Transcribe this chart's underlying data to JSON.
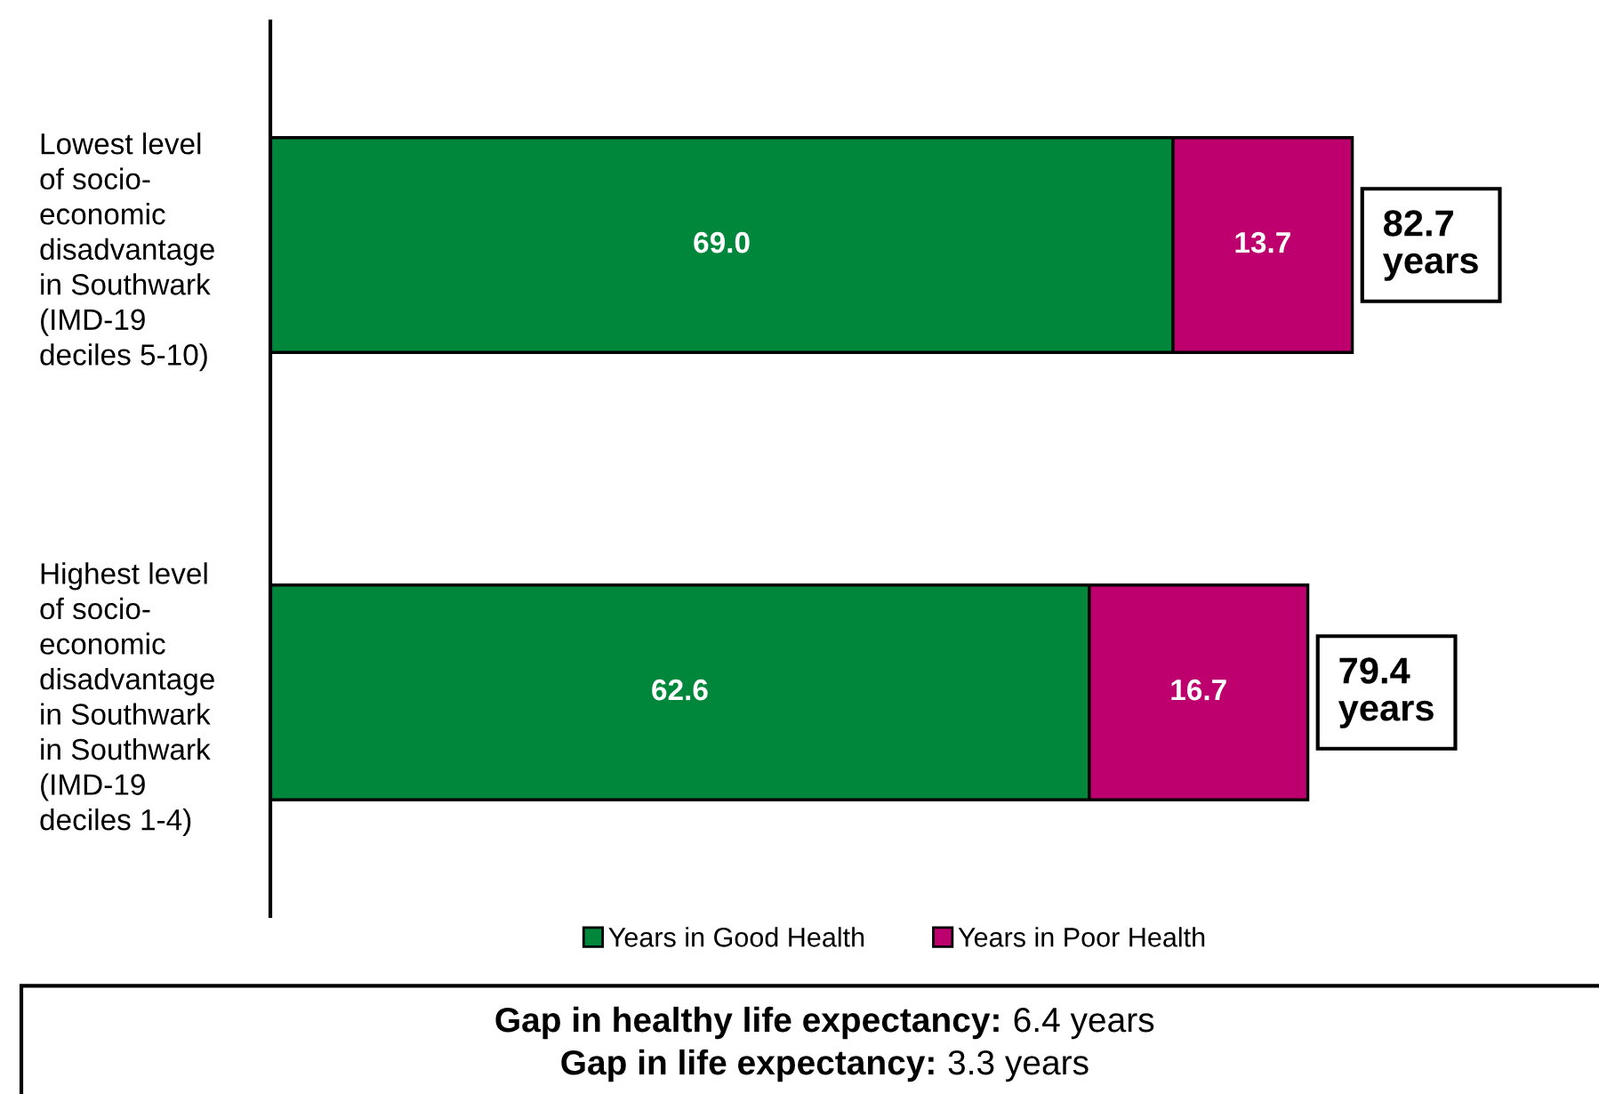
{
  "chart_data": {
    "type": "bar",
    "orientation": "horizontal",
    "stacked": true,
    "categories": [
      "Lowest level\nof socio-\neconomic\ndisadvantage\nin Southwark\n(IMD-19\ndeciles 5-10)",
      "Highest level\nof socio-\neconomic\ndisadvantage\nin Southwark\nin Southwark\n(IMD-19\ndeciles 1-4)"
    ],
    "series": [
      {
        "name": "Years in Good Health",
        "color": "#00873b",
        "values": [
          69.0,
          62.6
        ],
        "value_labels": [
          "69.0",
          "62.6"
        ]
      },
      {
        "name": "Years in Poor Health",
        "color": "#be006f",
        "values": [
          13.7,
          16.7
        ],
        "value_labels": [
          "13.7",
          "16.7"
        ]
      }
    ],
    "totals": [
      "82.7\nyears",
      "79.4\nyears"
    ],
    "legend": "bottom",
    "annotations": [
      "Gap in healthy life expectancy: 6.4 years",
      "Gap in life expectancy: 3.3 years"
    ]
  }
}
